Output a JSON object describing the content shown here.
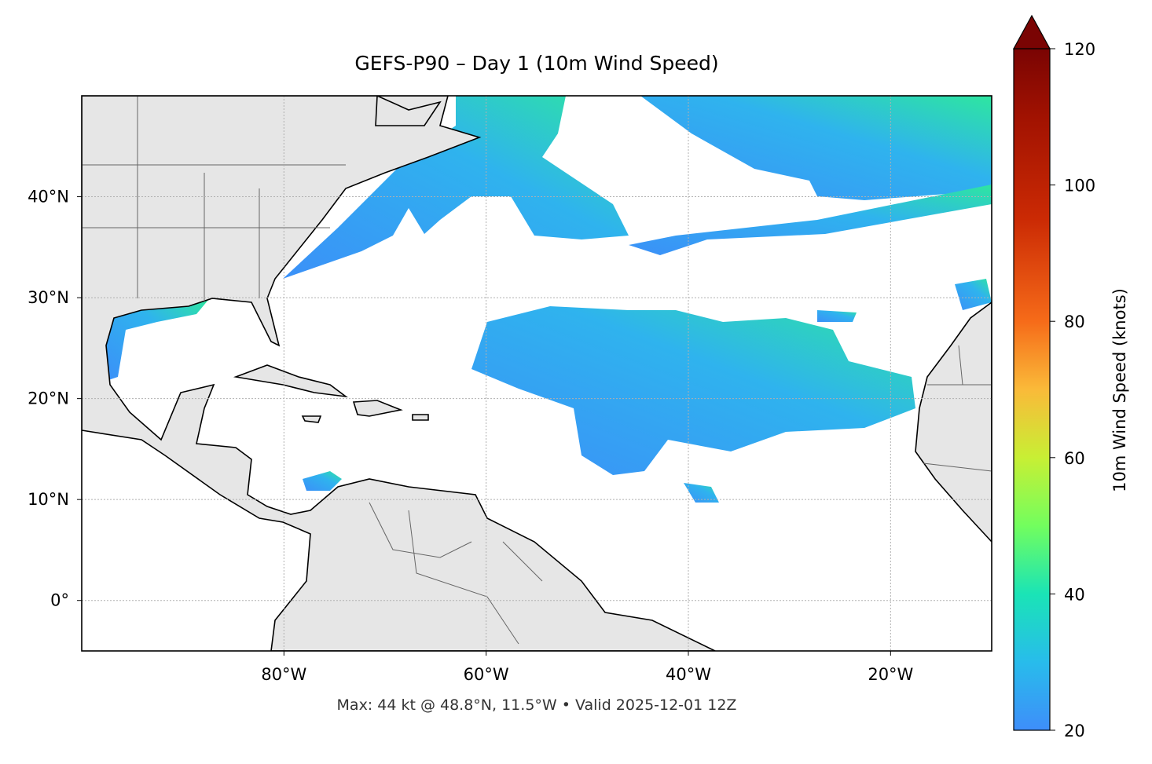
{
  "map": {
    "title": "GEFS-P90 – Day 1 (10m Wind Speed)",
    "xlim": [
      -100,
      -10
    ],
    "ylim": [
      -5,
      50
    ],
    "xticks": [
      {
        "value": -80,
        "label": "80°W"
      },
      {
        "value": -60,
        "label": "60°W"
      },
      {
        "value": -40,
        "label": "40°W"
      },
      {
        "value": -20,
        "label": "20°W"
      }
    ],
    "yticks": [
      {
        "value": 0,
        "label": "0°"
      },
      {
        "value": 10,
        "label": "10°N"
      },
      {
        "value": 20,
        "label": "20°N"
      },
      {
        "value": 30,
        "label": "30°N"
      },
      {
        "value": 40,
        "label": "40°N"
      }
    ],
    "grid": true,
    "colorbar": {
      "label": "10m Wind Speed (knots)",
      "lim": [
        20,
        120
      ],
      "ticks": [
        20,
        40,
        60,
        80,
        100,
        120
      ],
      "extend": "max"
    },
    "footer": "Max: 44 kt @ 48.8°N, 11.5°W • Valid 2025-12-01 12Z"
  }
}
